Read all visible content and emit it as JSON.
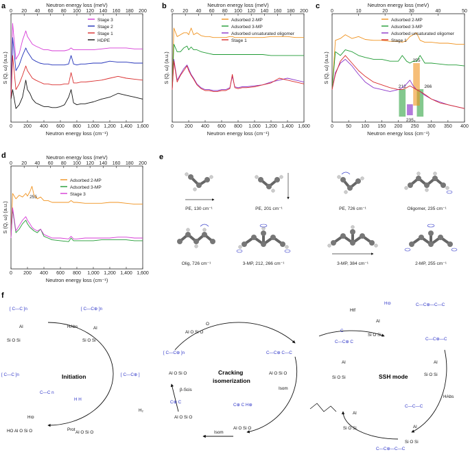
{
  "panels": {
    "a": {
      "label": "a",
      "top_axis": "Neutron energy loss (meV)",
      "top_ticks": [
        "0",
        "20",
        "40",
        "60",
        "80",
        "100",
        "120",
        "140",
        "160",
        "180",
        "200"
      ],
      "bottom_axis": "Neutron energy loss (cm⁻¹)",
      "bottom_ticks": [
        "0",
        "200",
        "400",
        "600",
        "800",
        "1,000",
        "1,200",
        "1,400",
        "1,600"
      ],
      "ylabel": "S (Q, ω) (a.u.)",
      "legend": [
        {
          "name": "Stage 3",
          "color": "#d63ad6"
        },
        {
          "name": "Stage 2",
          "color": "#1f2fb8"
        },
        {
          "name": "Stage 1",
          "color": "#d92b2b"
        },
        {
          "name": "HDPE",
          "color": "#111111"
        }
      ]
    },
    "b": {
      "label": "b",
      "top_axis": "Neutron energy loss (meV)",
      "top_ticks": [
        "0",
        "20",
        "40",
        "60",
        "80",
        "100",
        "120",
        "140",
        "160",
        "180",
        "200"
      ],
      "bottom_axis": "Neutron energy loss (cm⁻¹)",
      "bottom_ticks": [
        "0",
        "200",
        "400",
        "600",
        "800",
        "1,000",
        "1,200",
        "1,400",
        "1,600"
      ],
      "ylabel": "S (Q, ω) (a.u.)",
      "legend": [
        {
          "name": "Adsorbed 2-MP",
          "color": "#f0921e"
        },
        {
          "name": "Adsorbed 3-MP",
          "color": "#1e9a32"
        },
        {
          "name": "Adsorbed unsaturated oligomer",
          "color": "#8a34c9"
        },
        {
          "name": "Stage 1",
          "color": "#d92b2b"
        }
      ]
    },
    "c": {
      "label": "c",
      "top_axis": "Neutron energy loss (meV)",
      "top_ticks": [
        "0",
        "10",
        "20",
        "30",
        "40",
        "50"
      ],
      "bottom_axis": "Neutron energy loss (cm⁻¹)",
      "bottom_ticks": [
        "0",
        "50",
        "100",
        "150",
        "200",
        "250",
        "300",
        "350",
        "400"
      ],
      "ylabel": "S (Q, ω) (a.u.)",
      "legend": [
        {
          "name": "Adsorbed 2-MP",
          "color": "#f0921e"
        },
        {
          "name": "Adsorbed 3-MP",
          "color": "#1e9a32"
        },
        {
          "name": "Adsorbed unsaturated oligomer",
          "color": "#8a34c9"
        },
        {
          "name": "Stage 1",
          "color": "#d92b2b"
        }
      ],
      "annotations": [
        "255",
        "212",
        "266",
        "235"
      ]
    },
    "d": {
      "label": "d",
      "top_axis": "Neutron energy loss (meV)",
      "top_ticks": [
        "0",
        "20",
        "40",
        "60",
        "80",
        "100",
        "120",
        "140",
        "160",
        "180",
        "200"
      ],
      "bottom_axis": "Neutron energy loss (cm⁻¹)",
      "bottom_ticks": [
        "0",
        "200",
        "400",
        "600",
        "800",
        "1,000",
        "1,200",
        "1,400",
        "1,600"
      ],
      "ylabel": "S (Q, ω) (a.u.)",
      "legend": [
        {
          "name": "Adsorbed 2-MP",
          "color": "#f0921e"
        },
        {
          "name": "Adsorbed 3-MP",
          "color": "#1e9a32"
        },
        {
          "name": "Stage 3",
          "color": "#d63ad6"
        }
      ],
      "annotations": [
        "255"
      ]
    },
    "e": {
      "label": "e",
      "captions": [
        "PE, 130 cm⁻¹",
        "PE, 201 cm⁻¹",
        "PE, 726 cm⁻¹",
        "Oligomer, 235 cm⁻¹",
        "Olig, 726 cm⁻¹",
        "3-MP, 212, 266 cm⁻¹",
        "3-MP, 384 cm⁻¹",
        "2-MP, 255 cm⁻¹"
      ]
    },
    "f": {
      "label": "f",
      "cycles": [
        "Initiation",
        "Cracking",
        "isomerization",
        "SSH mode"
      ],
      "steps": [
        "HAbs",
        "Prot",
        "H₂",
        "β-Scis",
        "Isom",
        "Isom",
        "Htf",
        "HAbs"
      ]
    }
  },
  "chart_data": [
    {
      "type": "line",
      "title": "a",
      "xlabel": "Neutron energy loss (cm⁻¹)",
      "ylabel": "S (Q, ω) (a.u.)",
      "xlim": [
        0,
        1600
      ],
      "x": [
        0,
        20,
        60,
        100,
        140,
        180,
        200,
        230,
        260,
        300,
        350,
        400,
        450,
        500,
        550,
        600,
        650,
        700,
        730,
        760,
        800,
        850,
        900,
        1000,
        1100,
        1200,
        1300,
        1400,
        1500,
        1600
      ],
      "series": [
        {
          "name": "Stage 3",
          "values": [
            0.2,
            1.0,
            0.62,
            0.68,
            0.82,
            0.92,
            0.86,
            0.82,
            0.78,
            0.76,
            0.74,
            0.72,
            0.72,
            0.71,
            0.71,
            0.71,
            0.71,
            0.72,
            0.74,
            0.72,
            0.72,
            0.72,
            0.72,
            0.72,
            0.73,
            0.74,
            0.74,
            0.74,
            0.73,
            0.73
          ]
        },
        {
          "name": "Stage 2",
          "values": [
            0.2,
            0.85,
            0.5,
            0.56,
            0.66,
            0.74,
            0.7,
            0.66,
            0.62,
            0.6,
            0.58,
            0.57,
            0.57,
            0.56,
            0.56,
            0.56,
            0.56,
            0.57,
            0.66,
            0.57,
            0.56,
            0.57,
            0.57,
            0.58,
            0.58,
            0.6,
            0.59,
            0.59,
            0.58,
            0.58
          ]
        },
        {
          "name": "Stage 1",
          "values": [
            0.2,
            0.66,
            0.3,
            0.36,
            0.45,
            0.55,
            0.5,
            0.46,
            0.42,
            0.4,
            0.38,
            0.36,
            0.36,
            0.35,
            0.35,
            0.35,
            0.36,
            0.36,
            0.48,
            0.37,
            0.37,
            0.38,
            0.38,
            0.39,
            0.4,
            0.42,
            0.44,
            0.42,
            0.41,
            0.4
          ]
        },
        {
          "name": "HDPE",
          "values": [
            0.2,
            0.3,
            0.1,
            0.14,
            0.22,
            0.4,
            0.3,
            0.26,
            0.2,
            0.16,
            0.14,
            0.12,
            0.12,
            0.11,
            0.11,
            0.12,
            0.14,
            0.22,
            0.3,
            0.16,
            0.14,
            0.15,
            0.15,
            0.17,
            0.2,
            0.22,
            0.26,
            0.24,
            0.22,
            0.2
          ]
        }
      ]
    },
    {
      "type": "line",
      "title": "b",
      "xlabel": "Neutron energy loss (cm⁻¹)",
      "ylabel": "S (Q, ω) (a.u.)",
      "xlim": [
        0,
        1600
      ],
      "x": [
        0,
        20,
        60,
        100,
        140,
        180,
        200,
        230,
        260,
        300,
        350,
        400,
        450,
        500,
        550,
        600,
        650,
        700,
        730,
        760,
        800,
        850,
        900,
        1000,
        1100,
        1200,
        1300,
        1400,
        1500,
        1600
      ],
      "series": [
        {
          "name": "Adsorbed 2-MP",
          "values": [
            0.3,
            0.95,
            0.86,
            0.88,
            0.9,
            0.9,
            0.88,
            0.95,
            0.88,
            0.9,
            0.87,
            0.86,
            0.86,
            0.85,
            0.85,
            0.85,
            0.85,
            0.86,
            0.86,
            0.85,
            0.85,
            0.85,
            0.85,
            0.85,
            0.85,
            0.86,
            0.86,
            0.86,
            0.85,
            0.85
          ]
        },
        {
          "name": "Adsorbed 3-MP",
          "values": [
            0.3,
            0.78,
            0.7,
            0.7,
            0.74,
            0.76,
            0.72,
            0.75,
            0.72,
            0.72,
            0.7,
            0.69,
            0.68,
            0.67,
            0.67,
            0.67,
            0.67,
            0.67,
            0.67,
            0.67,
            0.67,
            0.67,
            0.67,
            0.67,
            0.67,
            0.66,
            0.66,
            0.66,
            0.66,
            0.66
          ]
        },
        {
          "name": "Adsorbed unsaturated oligomer",
          "values": [
            0.3,
            0.62,
            0.4,
            0.46,
            0.52,
            0.56,
            0.52,
            0.46,
            0.42,
            0.36,
            0.32,
            0.3,
            0.3,
            0.29,
            0.29,
            0.3,
            0.3,
            0.32,
            0.44,
            0.33,
            0.32,
            0.33,
            0.33,
            0.34,
            0.35,
            0.38,
            0.4,
            0.42,
            0.4,
            0.38
          ]
        },
        {
          "name": "Stage 1",
          "values": [
            0.3,
            0.6,
            0.38,
            0.45,
            0.5,
            0.55,
            0.5,
            0.45,
            0.41,
            0.35,
            0.31,
            0.29,
            0.29,
            0.28,
            0.28,
            0.29,
            0.29,
            0.31,
            0.46,
            0.32,
            0.31,
            0.32,
            0.32,
            0.33,
            0.35,
            0.37,
            0.42,
            0.4,
            0.38,
            0.36
          ]
        }
      ]
    },
    {
      "type": "line",
      "title": "c",
      "xlabel": "Neutron energy loss (cm⁻¹)",
      "ylabel": "S (Q, ω) (a.u.)",
      "xlim": [
        0,
        400
      ],
      "x": [
        0,
        10,
        25,
        40,
        60,
        80,
        100,
        125,
        150,
        175,
        200,
        212,
        225,
        235,
        245,
        255,
        266,
        280,
        300,
        325,
        350,
        375,
        400
      ],
      "series": [
        {
          "name": "Adsorbed 2-MP",
          "values": [
            0.3,
            0.82,
            0.84,
            0.88,
            0.84,
            0.86,
            0.83,
            0.82,
            0.82,
            0.81,
            0.81,
            0.8,
            0.82,
            0.86,
            0.88,
            0.9,
            0.82,
            0.8,
            0.8,
            0.79,
            0.79,
            0.78,
            0.78
          ]
        },
        {
          "name": "Adsorbed 3-MP",
          "values": [
            0.3,
            0.7,
            0.66,
            0.72,
            0.7,
            0.66,
            0.64,
            0.62,
            0.62,
            0.6,
            0.6,
            0.66,
            0.6,
            0.58,
            0.6,
            0.6,
            0.66,
            0.58,
            0.58,
            0.57,
            0.56,
            0.56,
            0.55
          ]
        },
        {
          "name": "Adsorbed unsaturated oligomer",
          "values": [
            0.3,
            0.48,
            0.58,
            0.62,
            0.55,
            0.46,
            0.38,
            0.32,
            0.3,
            0.28,
            0.3,
            0.32,
            0.36,
            0.4,
            0.34,
            0.3,
            0.28,
            0.24,
            0.2,
            0.17,
            0.14,
            0.12,
            0.1
          ]
        },
        {
          "name": "Stage 1",
          "values": [
            0.3,
            0.46,
            0.6,
            0.66,
            0.58,
            0.5,
            0.44,
            0.38,
            0.35,
            0.32,
            0.3,
            0.3,
            0.32,
            0.34,
            0.32,
            0.3,
            0.28,
            0.25,
            0.2,
            0.16,
            0.14,
            0.12,
            0.1
          ]
        }
      ]
    },
    {
      "type": "line",
      "title": "d",
      "xlabel": "Neutron energy loss (cm⁻¹)",
      "ylabel": "S (Q, ω) (a.u.)",
      "xlim": [
        0,
        1600
      ],
      "x": [
        0,
        20,
        60,
        100,
        140,
        180,
        200,
        230,
        255,
        280,
        320,
        360,
        400,
        450,
        500,
        600,
        700,
        730,
        760,
        800,
        900,
        1000,
        1100,
        1200,
        1300,
        1400,
        1500,
        1600
      ],
      "series": [
        {
          "name": "Adsorbed 2-MP",
          "values": [
            0.3,
            0.8,
            0.74,
            0.78,
            0.76,
            0.8,
            0.77,
            0.82,
            0.88,
            0.78,
            0.74,
            0.76,
            0.72,
            0.72,
            0.7,
            0.7,
            0.7,
            0.72,
            0.7,
            0.7,
            0.69,
            0.69,
            0.69,
            0.7,
            0.7,
            0.69,
            0.68,
            0.68
          ]
        },
        {
          "name": "Adsorbed 3-MP",
          "values": [
            0.3,
            0.62,
            0.36,
            0.4,
            0.46,
            0.5,
            0.46,
            0.42,
            0.4,
            0.38,
            0.36,
            0.4,
            0.32,
            0.3,
            0.28,
            0.27,
            0.26,
            0.3,
            0.27,
            0.27,
            0.27,
            0.27,
            0.28,
            0.28,
            0.28,
            0.28,
            0.27,
            0.27
          ]
        },
        {
          "name": "Stage 3",
          "values": [
            0.3,
            0.64,
            0.38,
            0.44,
            0.5,
            0.54,
            0.5,
            0.46,
            0.42,
            0.4,
            0.38,
            0.4,
            0.34,
            0.32,
            0.3,
            0.3,
            0.29,
            0.32,
            0.29,
            0.29,
            0.3,
            0.3,
            0.3,
            0.3,
            0.31,
            0.31,
            0.3,
            0.3
          ]
        }
      ]
    }
  ]
}
